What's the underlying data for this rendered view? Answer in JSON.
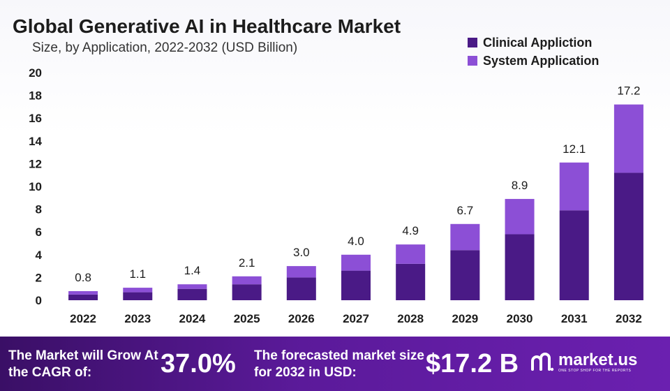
{
  "title": "Global Generative AI in Healthcare Market",
  "subtitle": "Size, by Application, 2022-2032 (USD Billion)",
  "colors": {
    "clinical": "#4a1a86",
    "system": "#8c4fd6",
    "footer_start": "#3a0f66",
    "footer_end": "#6b20b0"
  },
  "chart_data": {
    "type": "bar",
    "stacked": true,
    "categories": [
      "2022",
      "2023",
      "2024",
      "2025",
      "2026",
      "2027",
      "2028",
      "2029",
      "2030",
      "2031",
      "2032"
    ],
    "series": [
      {
        "name": "Clinical Appliction",
        "values": [
          0.5,
          0.7,
          1.0,
          1.4,
          2.0,
          2.6,
          3.2,
          4.4,
          5.8,
          7.9,
          11.2
        ]
      },
      {
        "name": "System Application",
        "values": [
          0.3,
          0.4,
          0.4,
          0.7,
          1.0,
          1.4,
          1.7,
          2.3,
          3.1,
          4.2,
          6.0
        ]
      }
    ],
    "totals": [
      "0.8",
      "1.1",
      "1.4",
      "2.1",
      "3.0",
      "4.0",
      "4.9",
      "6.7",
      "8.9",
      "12.1",
      "17.2"
    ],
    "y_ticks": [
      "0",
      "2",
      "4",
      "6",
      "8",
      "10",
      "12",
      "14",
      "16",
      "18",
      "20"
    ],
    "ylim": [
      0,
      20
    ],
    "grid": false,
    "legend_position": "top-right"
  },
  "footer": {
    "cagr_label": "The Market will Grow At the CAGR of:",
    "cagr_value": "37.0%",
    "forecast_label": "The forecasted market size for 2032 in USD:",
    "forecast_value": "$17.2 B",
    "brand": "market.us",
    "tagline": "ONE STOP SHOP FOR THE REPORTS"
  }
}
